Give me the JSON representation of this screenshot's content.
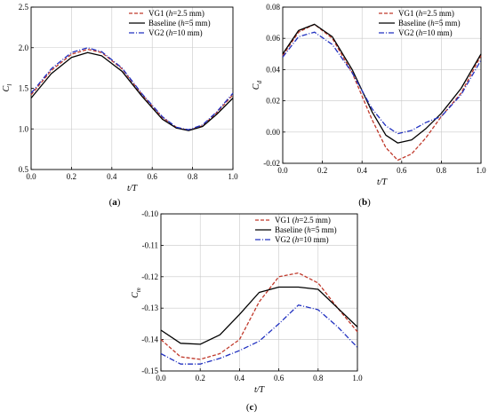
{
  "chart_data": [
    {
      "type": "line",
      "panel_label": "(a)",
      "xlabel": "t/T",
      "ylabel": "C_l",
      "ylabel_main": "C",
      "ylabel_sub": "l",
      "xlim": [
        0.0,
        1.0
      ],
      "ylim": [
        0.5,
        2.5
      ],
      "xticks": [
        "0.0",
        "0.2",
        "0.4",
        "0.6",
        "0.8",
        "1.0"
      ],
      "yticks": [
        "0.5",
        "1.0",
        "1.5",
        "2.0",
        "2.5"
      ],
      "grid": true,
      "legend_position": "top-right",
      "series": [
        {
          "name": "VG1 (h=2.5 mm)",
          "legend_pre": "VG1 (",
          "legend_ital": "h",
          "legend_post": "=2.5 mm)",
          "color": "#c0392b",
          "dash": "4,2",
          "x": [
            0.0,
            0.1,
            0.2,
            0.28,
            0.35,
            0.45,
            0.55,
            0.65,
            0.72,
            0.78,
            0.85,
            0.92,
            1.0
          ],
          "y": [
            1.42,
            1.72,
            1.92,
            1.98,
            1.94,
            1.74,
            1.42,
            1.14,
            1.02,
            0.98,
            1.04,
            1.2,
            1.42
          ]
        },
        {
          "name": "Baseline (h=5 mm)",
          "legend_pre": "Baseline (",
          "legend_ital": "h",
          "legend_post": "=5 mm)",
          "color": "#000000",
          "dash": "",
          "x": [
            0.0,
            0.1,
            0.2,
            0.28,
            0.35,
            0.45,
            0.55,
            0.65,
            0.72,
            0.78,
            0.85,
            0.92,
            1.0
          ],
          "y": [
            1.38,
            1.68,
            1.88,
            1.94,
            1.9,
            1.71,
            1.4,
            1.12,
            1.01,
            0.98,
            1.03,
            1.18,
            1.38
          ]
        },
        {
          "name": "VG2 (h=10 mm)",
          "legend_pre": "VG2 (",
          "legend_ital": "h",
          "legend_post": "=10 mm)",
          "color": "#2030c0",
          "dash": "6,2,1,2",
          "x": [
            0.0,
            0.1,
            0.2,
            0.28,
            0.35,
            0.45,
            0.55,
            0.65,
            0.72,
            0.78,
            0.85,
            0.92,
            1.0
          ],
          "y": [
            1.44,
            1.74,
            1.94,
            2.0,
            1.95,
            1.75,
            1.43,
            1.15,
            1.02,
            0.99,
            1.05,
            1.21,
            1.44
          ]
        }
      ]
    },
    {
      "type": "line",
      "panel_label": "(b)",
      "xlabel": "t/T",
      "ylabel": "C_d",
      "ylabel_main": "C",
      "ylabel_sub": "d",
      "xlim": [
        0.0,
        1.0
      ],
      "ylim": [
        -0.02,
        0.08
      ],
      "xticks": [
        "0.0",
        "0.2",
        "0.4",
        "0.6",
        "0.8",
        "1.0"
      ],
      "yticks": [
        "-0.02",
        "0.00",
        "0.02",
        "0.04",
        "0.06",
        "0.08"
      ],
      "grid": true,
      "legend_position": "top-right",
      "series": [
        {
          "name": "VG1 (h=2.5 mm)",
          "legend_pre": "VG1 (",
          "legend_ital": "h",
          "legend_post": "=2.5 mm)",
          "color": "#c0392b",
          "dash": "4,2",
          "x": [
            0.0,
            0.08,
            0.16,
            0.25,
            0.35,
            0.45,
            0.52,
            0.58,
            0.65,
            0.72,
            0.8,
            0.9,
            1.0
          ],
          "y": [
            0.049,
            0.064,
            0.069,
            0.06,
            0.038,
            0.008,
            -0.01,
            -0.018,
            -0.014,
            -0.004,
            0.01,
            0.025,
            0.049
          ]
        },
        {
          "name": "Baseline (h=5 mm)",
          "legend_pre": "Baseline (",
          "legend_ital": "h",
          "legend_post": "=5 mm)",
          "color": "#000000",
          "dash": "",
          "x": [
            0.0,
            0.08,
            0.16,
            0.25,
            0.35,
            0.45,
            0.52,
            0.58,
            0.65,
            0.72,
            0.8,
            0.9,
            1.0
          ],
          "y": [
            0.05,
            0.065,
            0.069,
            0.061,
            0.04,
            0.013,
            -0.002,
            -0.007,
            -0.005,
            0.002,
            0.012,
            0.028,
            0.05
          ]
        },
        {
          "name": "VG2 (h=10 mm)",
          "legend_pre": "VG2 (",
          "legend_ital": "h",
          "legend_post": "=10 mm)",
          "color": "#2030c0",
          "dash": "6,2,1,2",
          "x": [
            0.0,
            0.08,
            0.16,
            0.25,
            0.35,
            0.45,
            0.52,
            0.58,
            0.65,
            0.72,
            0.8,
            0.9,
            1.0
          ],
          "y": [
            0.048,
            0.061,
            0.064,
            0.056,
            0.038,
            0.015,
            0.004,
            -0.001,
            0.001,
            0.006,
            0.01,
            0.024,
            0.046
          ]
        }
      ]
    },
    {
      "type": "line",
      "panel_label": "(c)",
      "xlabel": "t/T",
      "ylabel": "C_m",
      "ylabel_main": "C",
      "ylabel_sub": "m",
      "xlim": [
        0.0,
        1.0
      ],
      "ylim": [
        -0.15,
        -0.1
      ],
      "xticks": [
        "0.0",
        "0.2",
        "0.4",
        "0.6",
        "0.8",
        "1.0"
      ],
      "yticks": [
        "-0.15",
        "-0.14",
        "-0.13",
        "-0.12",
        "-0.11",
        "-0.10"
      ],
      "grid": true,
      "legend_position": "top-right",
      "series": [
        {
          "name": "VG1 (h=2.5 mm)",
          "legend_pre": "VG1 (",
          "legend_ital": "h",
          "legend_post": "=2.5 mm)",
          "color": "#c0392b",
          "dash": "4,2",
          "x": [
            0.0,
            0.1,
            0.2,
            0.3,
            0.4,
            0.5,
            0.6,
            0.7,
            0.8,
            0.9,
            1.0
          ],
          "y": [
            -0.14,
            -0.1455,
            -0.1463,
            -0.1445,
            -0.14,
            -0.128,
            -0.12,
            -0.1188,
            -0.122,
            -0.13,
            -0.1375
          ]
        },
        {
          "name": "Baseline (h=5 mm)",
          "legend_pre": "Baseline (",
          "legend_ital": "h",
          "legend_post": "=5 mm)",
          "color": "#000000",
          "dash": "",
          "x": [
            0.0,
            0.1,
            0.2,
            0.3,
            0.4,
            0.5,
            0.6,
            0.7,
            0.8,
            0.9,
            1.0
          ],
          "y": [
            -0.137,
            -0.1412,
            -0.1415,
            -0.1385,
            -0.132,
            -0.125,
            -0.1233,
            -0.1233,
            -0.124,
            -0.13,
            -0.136
          ]
        },
        {
          "name": "VG2 (h=10 mm)",
          "legend_pre": "VG2 (",
          "legend_ital": "h",
          "legend_post": "=10 mm)",
          "color": "#2030c0",
          "dash": "6,2,1,2",
          "x": [
            0.0,
            0.1,
            0.2,
            0.3,
            0.4,
            0.5,
            0.6,
            0.7,
            0.8,
            0.9,
            1.0
          ],
          "y": [
            -0.1445,
            -0.1478,
            -0.1478,
            -0.146,
            -0.1435,
            -0.1405,
            -0.135,
            -0.129,
            -0.1305,
            -0.136,
            -0.1425
          ]
        }
      ]
    }
  ]
}
